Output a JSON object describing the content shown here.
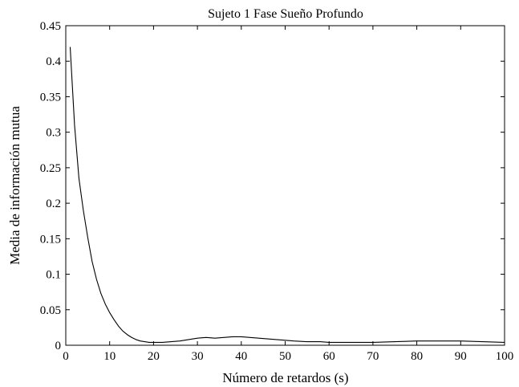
{
  "chart_data": {
    "type": "line",
    "title": "Sujeto 1 Fase Sueño Profundo",
    "xlabel": "Número de retardos (s)",
    "ylabel": "Media de información mutua",
    "xlim": [
      0,
      100
    ],
    "ylim": [
      0,
      0.45
    ],
    "xticks": [
      0,
      10,
      20,
      30,
      40,
      50,
      60,
      70,
      80,
      90,
      100
    ],
    "xtick_labels": [
      "0",
      "10",
      "20",
      "30",
      "40",
      "50",
      "60",
      "70",
      "80",
      "90",
      "100"
    ],
    "yticks": [
      0,
      0.05,
      0.1,
      0.15,
      0.2,
      0.25,
      0.3,
      0.35,
      0.4,
      0.45
    ],
    "ytick_labels": [
      "0",
      "0.05",
      "0.1",
      "0.15",
      "0.2",
      "0.25",
      "0.3",
      "0.35",
      "0.4",
      "0.45"
    ],
    "grid": false,
    "color": "#000000",
    "series": [
      {
        "x": [
          1,
          2,
          3,
          4,
          5,
          6,
          7,
          8,
          9,
          10,
          11,
          12,
          13,
          14,
          15,
          16,
          17,
          18,
          19,
          20,
          22,
          24,
          26,
          28,
          30,
          32,
          34,
          36,
          38,
          40,
          42,
          44,
          46,
          48,
          50,
          52,
          55,
          58,
          60,
          65,
          70,
          75,
          80,
          85,
          90,
          95,
          100
        ],
        "y": [
          0.42,
          0.31,
          0.235,
          0.19,
          0.152,
          0.118,
          0.093,
          0.073,
          0.058,
          0.046,
          0.036,
          0.027,
          0.02,
          0.015,
          0.011,
          0.008,
          0.006,
          0.005,
          0.004,
          0.004,
          0.004,
          0.005,
          0.006,
          0.008,
          0.01,
          0.011,
          0.01,
          0.011,
          0.012,
          0.012,
          0.011,
          0.01,
          0.009,
          0.008,
          0.007,
          0.006,
          0.005,
          0.005,
          0.004,
          0.004,
          0.004,
          0.005,
          0.006,
          0.006,
          0.006,
          0.005,
          0.004
        ]
      }
    ]
  }
}
